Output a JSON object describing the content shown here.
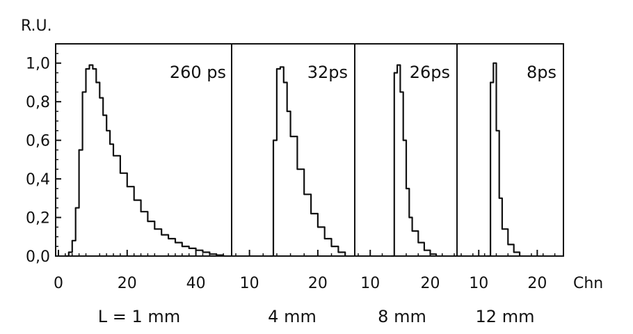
{
  "chart_data": {
    "type": "line",
    "ylabel": "R.U.",
    "xlabel": "Chn",
    "ylim": [
      0.0,
      1.1
    ],
    "yticks": [
      "0,0",
      "0,2",
      "0,4",
      "0,6",
      "0,8",
      "1,0"
    ],
    "panels": [
      {
        "label": "L = 1 mm",
        "annotation": "260 ps",
        "xlim": [
          0,
          50
        ],
        "xticks": [
          {
            "v": 0,
            "t": "0"
          },
          {
            "v": 20,
            "t": "20"
          },
          {
            "v": 40,
            "t": "40"
          }
        ],
        "x": [
          2,
          3,
          4,
          5,
          6,
          7,
          8,
          9,
          10,
          11,
          12,
          13,
          14,
          15,
          16,
          18,
          20,
          22,
          24,
          26,
          28,
          30,
          32,
          34,
          36,
          38,
          40,
          42,
          44,
          46,
          48
        ],
        "y": [
          0.0,
          0.02,
          0.08,
          0.25,
          0.55,
          0.85,
          0.97,
          0.99,
          0.97,
          0.9,
          0.82,
          0.73,
          0.65,
          0.58,
          0.52,
          0.43,
          0.36,
          0.29,
          0.23,
          0.18,
          0.14,
          0.11,
          0.09,
          0.07,
          0.05,
          0.04,
          0.03,
          0.02,
          0.01,
          0.005,
          0.0
        ]
      },
      {
        "label": "4 mm",
        "annotation": "32ps",
        "xlim": [
          8,
          25
        ],
        "xticks": [
          {
            "v": 10,
            "t": "10"
          },
          {
            "v": 20,
            "t": "20"
          }
        ],
        "x": [
          13,
          13.5,
          14,
          14.5,
          15,
          15.5,
          16,
          17,
          18,
          19,
          20,
          21,
          22,
          23,
          24
        ],
        "y": [
          0.0,
          0.6,
          0.97,
          0.98,
          0.9,
          0.75,
          0.62,
          0.45,
          0.32,
          0.22,
          0.15,
          0.09,
          0.05,
          0.02,
          0.0
        ]
      },
      {
        "label": "8 mm",
        "annotation": "26ps",
        "xlim": [
          8,
          24
        ],
        "xticks": [
          {
            "v": 10,
            "t": "10"
          },
          {
            "v": 20,
            "t": "20"
          }
        ],
        "x": [
          13.5,
          14,
          14.5,
          15,
          15.5,
          16,
          16.5,
          17,
          18,
          19,
          20,
          21
        ],
        "y": [
          0.0,
          0.95,
          0.99,
          0.85,
          0.6,
          0.35,
          0.2,
          0.13,
          0.07,
          0.03,
          0.01,
          0.0
        ]
      },
      {
        "label": "12 mm",
        "annotation": "8ps",
        "xlim": [
          7,
          24
        ],
        "xticks": [
          {
            "v": 10,
            "t": "10"
          },
          {
            "v": 20,
            "t": "20"
          }
        ],
        "x": [
          11.5,
          12,
          12.5,
          13,
          13.5,
          14,
          15,
          16,
          17
        ],
        "y": [
          0.0,
          0.9,
          1.0,
          0.65,
          0.3,
          0.14,
          0.06,
          0.02,
          0.0
        ]
      }
    ]
  }
}
